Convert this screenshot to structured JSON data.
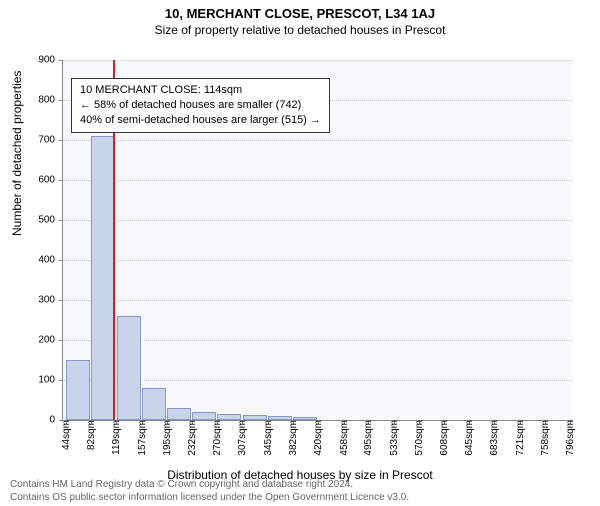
{
  "title": "10, MERCHANT CLOSE, PRESCOT, L34 1AJ",
  "subtitle": "Size of property relative to detached houses in Prescot",
  "title_fontsize": 13,
  "subtitle_fontsize": 12,
  "chart": {
    "type": "histogram",
    "background_color": "#f6f8fc",
    "bar_fill": "#c8d4ec",
    "bar_border": "#8898c0",
    "marker_color": "#d02020",
    "marker_x_sqm": 114,
    "x_min_sqm": 40,
    "x_max_sqm": 800,
    "y_min": 0,
    "y_max": 900,
    "y_tick_step": 100,
    "y_ticks": [
      0,
      100,
      200,
      300,
      400,
      500,
      600,
      700,
      800,
      900
    ],
    "x_ticks": [
      44,
      82,
      119,
      157,
      195,
      232,
      270,
      307,
      345,
      382,
      420,
      458,
      495,
      533,
      570,
      608,
      645,
      683,
      721,
      758,
      796
    ],
    "x_tick_suffix": "sqm",
    "bars": [
      {
        "x_center": 62,
        "width_sqm": 36,
        "count": 150
      },
      {
        "x_center": 100,
        "width_sqm": 36,
        "count": 710
      },
      {
        "x_center": 138,
        "width_sqm": 36,
        "count": 260
      },
      {
        "x_center": 175,
        "width_sqm": 36,
        "count": 80
      },
      {
        "x_center": 213,
        "width_sqm": 36,
        "count": 30
      },
      {
        "x_center": 250,
        "width_sqm": 36,
        "count": 20
      },
      {
        "x_center": 288,
        "width_sqm": 36,
        "count": 15
      },
      {
        "x_center": 326,
        "width_sqm": 36,
        "count": 12
      },
      {
        "x_center": 363,
        "width_sqm": 36,
        "count": 10
      },
      {
        "x_center": 400,
        "width_sqm": 36,
        "count": 8
      }
    ],
    "info_box": {
      "line1": "10 MERCHANT CLOSE: 114sqm",
      "line2": "← 58% of detached houses are smaller (742)",
      "line3": "40% of semi-detached houses are larger (515) →",
      "border_color": "#333333",
      "bg_color": "#ffffff",
      "fontsize": 11
    },
    "ylabel": "Number of detached properties",
    "xlabel": "Distribution of detached houses by size in Prescot",
    "axis_label_fontsize": 12,
    "tick_fontsize": 10
  },
  "footer": {
    "line1": "Contains HM Land Registry data © Crown copyright and database right 2024.",
    "line2": "Contains OS public sector information licensed under the Open Government Licence v3.0.",
    "color": "#666666",
    "fontsize": 10
  }
}
